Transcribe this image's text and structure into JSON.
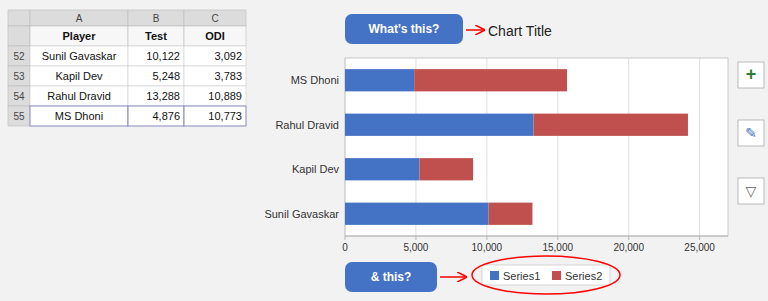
{
  "chart_data": {
    "type": "bar",
    "orientation": "horizontal",
    "stacked": true,
    "title": "Chart Title",
    "categories": [
      "Sunil Gavaskar",
      "Kapil Dev",
      "Rahul Dravid",
      "MS Dhoni"
    ],
    "series": [
      {
        "name": "Series1",
        "color": "#4472C4",
        "values": [
          10122,
          5248,
          13288,
          4876
        ]
      },
      {
        "name": "Series2",
        "color": "#C0504D",
        "values": [
          3092,
          3783,
          10889,
          10773
        ]
      }
    ],
    "xlim": [
      0,
      27000
    ],
    "xticks": [
      0,
      {
        "value": 5000,
        "label": "5,000"
      },
      {
        "value": 10000,
        "label": "10,000"
      },
      {
        "value": 15000,
        "label": "15,000"
      },
      {
        "value": 20000,
        "label": "20,000"
      },
      {
        "value": 25000,
        "label": "25,000"
      }
    ],
    "grid": true,
    "legend": "bottom",
    "annotations": [
      "What’s this?",
      "& this?"
    ]
  },
  "table": {
    "column_letters": [
      "A",
      "B",
      "C"
    ],
    "headers": [
      "Player",
      "Test",
      "ODI"
    ],
    "row_numbers": [
      52,
      53,
      54,
      55
    ],
    "rows": [
      [
        "Sunil Gavaskar",
        "10,122",
        "3,092"
      ],
      [
        "Kapil Dev",
        "5,248",
        "3,783"
      ],
      [
        "Rahul Dravid",
        "13,288",
        "10,889"
      ],
      [
        "MS Dhoni",
        "4,876",
        "10,773"
      ]
    ]
  },
  "toolbar": [
    "+",
    "✎",
    "▽"
  ]
}
